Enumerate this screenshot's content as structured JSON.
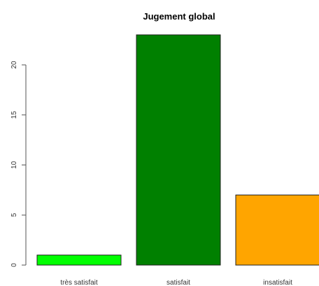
{
  "chart_data": {
    "type": "bar",
    "title": "Jugement global",
    "xlabel": "",
    "ylabel": "",
    "categories": [
      "très satisfait",
      "satisfait",
      "insatisfait"
    ],
    "values": [
      1,
      23,
      7
    ],
    "colors": [
      "#00ff00",
      "#008000",
      "#ffa500"
    ],
    "ylim": [
      0,
      23
    ],
    "yticks": [
      0,
      5,
      10,
      15,
      20
    ],
    "grid": false,
    "legend": "none"
  }
}
